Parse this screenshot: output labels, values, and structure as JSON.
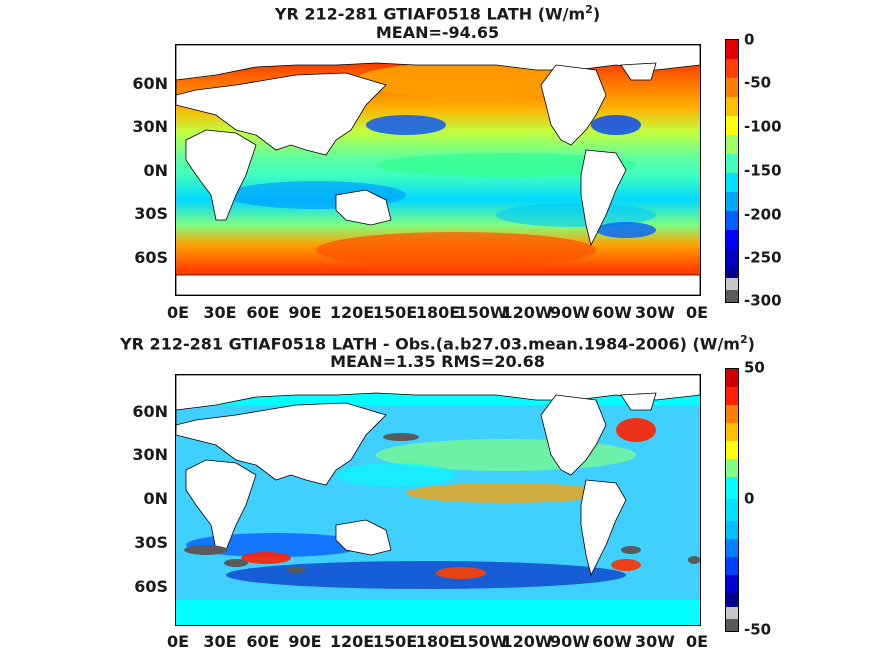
{
  "panels": [
    {
      "title_line1_prefix": "YR 212-281 GTIAF0518  LATH (W/m",
      "title_line1_sup": "2",
      "title_line1_suffix": ")",
      "title_line2": "MEAN=-94.65",
      "lat_labels": [
        "60N",
        "30N",
        "0N",
        "30S",
        "60S"
      ],
      "lon_labels": [
        "0E",
        "30E",
        "60E",
        "90E",
        "120E",
        "150E",
        "180E",
        "150W",
        "120W",
        "90W",
        "60W",
        "30W",
        "0E"
      ],
      "colorbar_labels": [
        "0",
        "-50",
        "-100",
        "-150",
        "-200",
        "-250",
        "-300"
      ],
      "colorbar_range": [
        -300,
        0
      ]
    },
    {
      "title_line1_prefix": "YR 212-281 GTIAF0518 LATH - Obs.(a.b27.03.mean.1984-2006) (W/m",
      "title_line1_sup": "2",
      "title_line1_suffix": ")",
      "title_line2": "MEAN=1.35 RMS=20.68",
      "lat_labels": [
        "60N",
        "30N",
        "0N",
        "30S",
        "60S"
      ],
      "lon_labels": [
        "0E",
        "30E",
        "60E",
        "90E",
        "120E",
        "150E",
        "180E",
        "150W",
        "120W",
        "90W",
        "60W",
        "30W",
        "0E"
      ],
      "colorbar_labels": [
        "50",
        "0",
        "-50"
      ],
      "colorbar_range": [
        -50,
        50
      ]
    }
  ],
  "colors": {
    "top_scale": [
      "#5a5a5a",
      "#c8c8c8",
      "#00008f",
      "#0000ff",
      "#0060ff",
      "#00a8ff",
      "#00e0ff",
      "#40ffc0",
      "#a0ff60",
      "#ffff00",
      "#ffc000",
      "#ff8000",
      "#ff4000",
      "#e00000"
    ],
    "diff_scale": [
      "#5a5a5a",
      "#c8c8c8",
      "#00008f",
      "#0000d0",
      "#0040ff",
      "#0080ff",
      "#00c0ff",
      "#00ffff",
      "#00ffff",
      "#80ff80",
      "#ffff00",
      "#ffc000",
      "#ff8000",
      "#ff2000",
      "#d00000"
    ],
    "land": "#ffffff"
  }
}
